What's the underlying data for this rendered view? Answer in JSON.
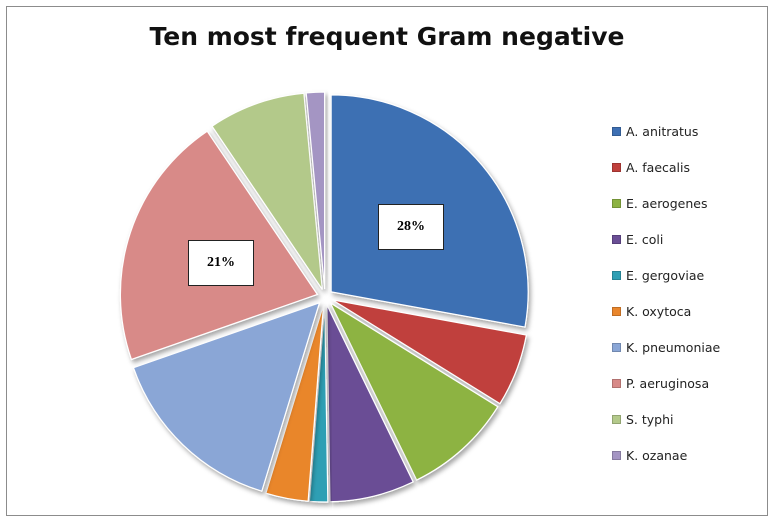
{
  "chart_data": {
    "type": "pie",
    "title": "Ten most frequent Gram negative",
    "legend_position": "right",
    "slices": [
      {
        "label": "A. anitratus",
        "value": 28,
        "color": "#3d6fb3",
        "data_label": "28%"
      },
      {
        "label": "A. faecalis",
        "value": 6,
        "color": "#c0403c",
        "data_label": ""
      },
      {
        "label": "E. aerogenes",
        "value": 9,
        "color": "#8db342",
        "data_label": ""
      },
      {
        "label": "E. coli",
        "value": 7,
        "color": "#6a4e95",
        "data_label": ""
      },
      {
        "label": "E. gergoviae",
        "value": 1.5,
        "color": "#2f9fb4",
        "data_label": ""
      },
      {
        "label": "K. oxytoca",
        "value": 3.5,
        "color": "#e9862c",
        "data_label": ""
      },
      {
        "label": "K. pneumoniae",
        "value": 15,
        "color": "#8aa6d6",
        "data_label": ""
      },
      {
        "label": "P. aeruginosa",
        "value": 21,
        "color": "#d88a88",
        "data_label": "21%"
      },
      {
        "label": "S. typhi",
        "value": 8,
        "color": "#b3c98a",
        "data_label": ""
      },
      {
        "label": "K. ozanae",
        "value": 1.5,
        "color": "#a495c3",
        "data_label": ""
      }
    ]
  }
}
